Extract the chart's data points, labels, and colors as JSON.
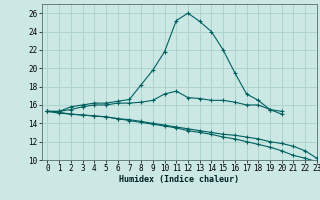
{
  "xlabel": "Humidex (Indice chaleur)",
  "background_color": "#cce8e4",
  "grid_color": "#aed4ce",
  "line_color": "#006060",
  "x_values": [
    0,
    1,
    2,
    3,
    4,
    5,
    6,
    7,
    8,
    9,
    10,
    11,
    12,
    13,
    14,
    15,
    16,
    17,
    18,
    19,
    20,
    21,
    22,
    23
  ],
  "series": [
    [
      15.3,
      15.3,
      15.8,
      16.0,
      16.2,
      16.2,
      16.4,
      16.6,
      18.2,
      19.8,
      21.8,
      25.2,
      26.0,
      25.1,
      24.0,
      22.0,
      19.5,
      17.2,
      16.5,
      15.5,
      15.0,
      null,
      null,
      null
    ],
    [
      15.3,
      15.3,
      15.5,
      15.8,
      16.0,
      16.0,
      16.2,
      16.2,
      16.3,
      16.5,
      17.2,
      17.5,
      16.8,
      16.7,
      16.5,
      16.5,
      16.3,
      16.0,
      16.0,
      15.5,
      15.3,
      null,
      null,
      null
    ],
    [
      15.3,
      15.2,
      15.0,
      14.9,
      14.8,
      14.7,
      14.5,
      14.4,
      14.2,
      14.0,
      13.8,
      13.6,
      13.4,
      13.2,
      13.0,
      12.8,
      12.7,
      12.5,
      12.3,
      12.0,
      11.8,
      11.5,
      11.0,
      10.2
    ],
    [
      15.3,
      15.1,
      15.0,
      14.9,
      14.8,
      14.7,
      14.5,
      14.3,
      14.1,
      13.9,
      13.7,
      13.5,
      13.2,
      13.0,
      12.8,
      12.5,
      12.3,
      12.0,
      11.7,
      11.4,
      11.0,
      10.5,
      10.2,
      9.8
    ]
  ],
  "ylim": [
    10,
    27
  ],
  "xlim": [
    -0.5,
    23
  ],
  "yticks": [
    10,
    12,
    14,
    16,
    18,
    20,
    22,
    24,
    26
  ],
  "xticks": [
    0,
    1,
    2,
    3,
    4,
    5,
    6,
    7,
    8,
    9,
    10,
    11,
    12,
    13,
    14,
    15,
    16,
    17,
    18,
    19,
    20,
    21,
    22,
    23
  ],
  "xlabel_fontsize": 6.0,
  "tick_fontsize": 5.5
}
